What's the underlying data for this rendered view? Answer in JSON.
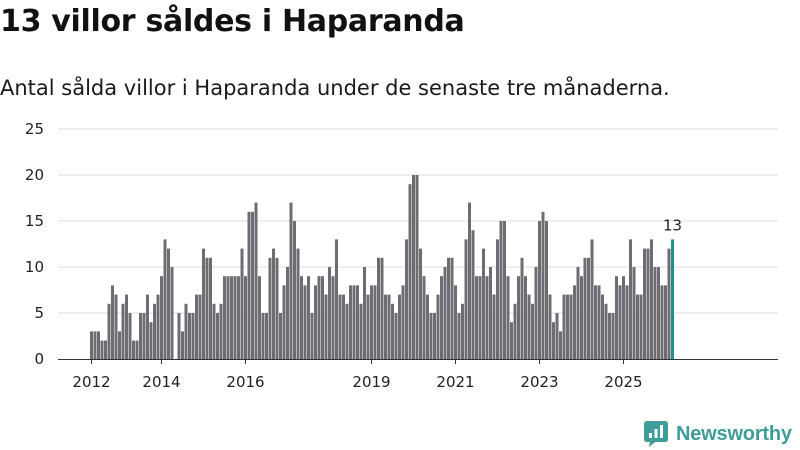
{
  "page": {
    "title": "13 villor såldes i Haparanda",
    "subtitle": "Antal sålda villor i Haparanda under de senaste tre månaderna.",
    "brand": "Newsworthy"
  },
  "colors": {
    "bar": "#6d6c72",
    "highlight": "#22908c",
    "grid": "#dddddd",
    "axis": "#333333",
    "brand": "#3f9c98"
  },
  "chart_data": {
    "type": "bar",
    "title": "13 villor såldes i Haparanda",
    "subtitle": "Antal sålda villor i Haparanda under de senaste tre månaderna.",
    "xlabel": "",
    "ylabel": "",
    "ylim": [
      0,
      25
    ],
    "yticks": [
      0,
      5,
      10,
      15,
      20,
      25
    ],
    "grid": true,
    "series_note": "monthly values, rolling three-month totals, 2012-04 to 2025-09",
    "start": "2012-04",
    "xticks": [
      {
        "label": "2012",
        "index": 0
      },
      {
        "label": "2014",
        "index": 20
      },
      {
        "label": "2016",
        "index": 44
      },
      {
        "label": "2019",
        "index": 80
      },
      {
        "label": "2021",
        "index": 104
      },
      {
        "label": "2023",
        "index": 128
      },
      {
        "label": "2025",
        "index": 152
      }
    ],
    "values": [
      3,
      3,
      3,
      2,
      2,
      6,
      8,
      7,
      3,
      6,
      7,
      5,
      2,
      2,
      5,
      5,
      7,
      4,
      6,
      7,
      9,
      13,
      12,
      10,
      0,
      5,
      3,
      6,
      5,
      5,
      7,
      7,
      12,
      11,
      11,
      6,
      5,
      6,
      9,
      9,
      9,
      9,
      9,
      12,
      9,
      16,
      16,
      17,
      9,
      5,
      5,
      11,
      12,
      11,
      5,
      8,
      10,
      17,
      15,
      12,
      9,
      8,
      9,
      5,
      8,
      9,
      9,
      7,
      10,
      9,
      13,
      7,
      7,
      6,
      8,
      8,
      8,
      6,
      10,
      7,
      8,
      8,
      11,
      11,
      7,
      7,
      6,
      5,
      7,
      8,
      13,
      19,
      20,
      20,
      12,
      9,
      7,
      5,
      5,
      7,
      9,
      10,
      11,
      11,
      8,
      5,
      6,
      13,
      17,
      14,
      9,
      9,
      12,
      9,
      10,
      7,
      13,
      15,
      15,
      9,
      4,
      6,
      9,
      11,
      9,
      7,
      6,
      10,
      15,
      16,
      15,
      7,
      4,
      5,
      3,
      7,
      7,
      7,
      8,
      10,
      9,
      11,
      11,
      13,
      8,
      8,
      7,
      6,
      5,
      5,
      9,
      8,
      9,
      8,
      13,
      10,
      7,
      7,
      12,
      12,
      13,
      10,
      10,
      8,
      8,
      12,
      13
    ],
    "highlight_last": true,
    "last_label": "13"
  }
}
